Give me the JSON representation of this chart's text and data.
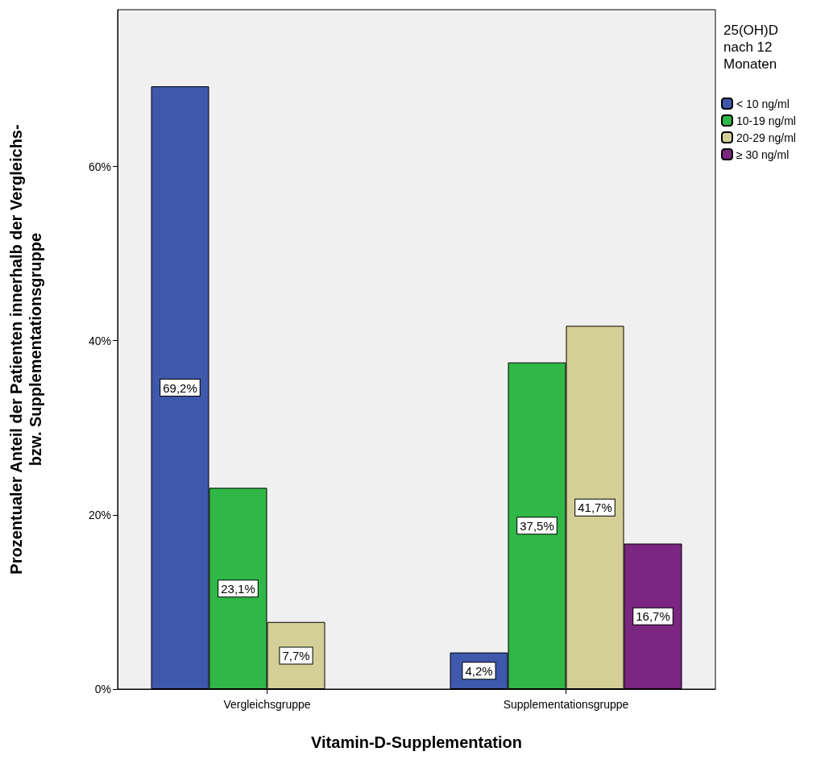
{
  "chart_data": {
    "type": "bar",
    "xlabel": "Vitamin-D-Supplementation",
    "ylabel": "Prozentualer Anteil der Patienten innerhalb der Vergleichs-\nbzw. Supplementationsgruppe",
    "legend_title": "25(OH)D nach 12 Monaten",
    "legend": "top right",
    "categories": [
      "Vergleichsgruppe",
      "Supplementationsgruppe"
    ],
    "series": [
      {
        "name": "< 10 ng/ml",
        "color": "#3e58ac",
        "values": [
          69.2,
          4.2
        ],
        "value_labels": [
          "69,2%",
          "4,2%"
        ]
      },
      {
        "name": "10-19 ng/ml",
        "color": "#2fb847",
        "values": [
          23.1,
          37.5
        ],
        "value_labels": [
          "23,1%",
          "37,5%"
        ]
      },
      {
        "name": "20-29 ng/ml",
        "color": "#d4cf97",
        "values": [
          7.7,
          41.7
        ],
        "value_labels": [
          "7,7%",
          "41,7%"
        ]
      },
      {
        "name": "≥ 30 ng/ml",
        "color": "#7b2680",
        "values": [
          null,
          16.7
        ],
        "value_labels": [
          null,
          "16,7%"
        ]
      }
    ],
    "ylim": [
      0,
      78
    ],
    "yticks": [
      {
        "value": 0,
        "label": "0%"
      },
      {
        "value": 20,
        "label": "20%"
      },
      {
        "value": 40,
        "label": "40%"
      },
      {
        "value": 60,
        "label": "60%"
      }
    ]
  }
}
